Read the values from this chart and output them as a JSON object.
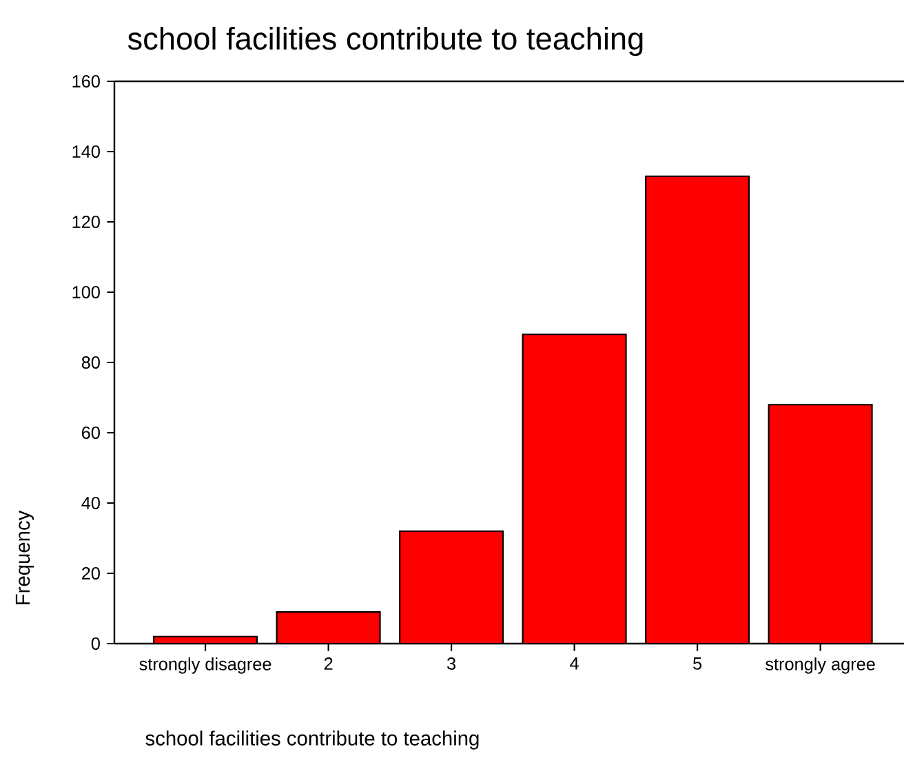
{
  "chart_data": {
    "type": "bar",
    "title": "school facilities contribute to teaching",
    "xlabel": "school facilities contribute to teaching",
    "ylabel": "Frequency",
    "categories": [
      "strongly disagree",
      "2",
      "3",
      "4",
      "5",
      "strongly agree"
    ],
    "values": [
      2,
      9,
      32,
      88,
      133,
      68
    ],
    "color": "#ff0000",
    "ylim": [
      0,
      160
    ],
    "yticks": [
      0,
      20,
      40,
      60,
      80,
      100,
      120,
      140,
      160
    ]
  }
}
